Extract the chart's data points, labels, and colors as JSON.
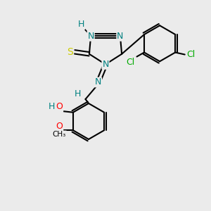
{
  "bg_color": "#ebebeb",
  "atom_colors": {
    "N": "#008080",
    "S": "#cccc00",
    "O": "#ff0000",
    "Cl": "#00aa00",
    "C": "#000000",
    "H": "#008080"
  },
  "figsize": [
    3.0,
    3.0
  ],
  "dpi": 100
}
